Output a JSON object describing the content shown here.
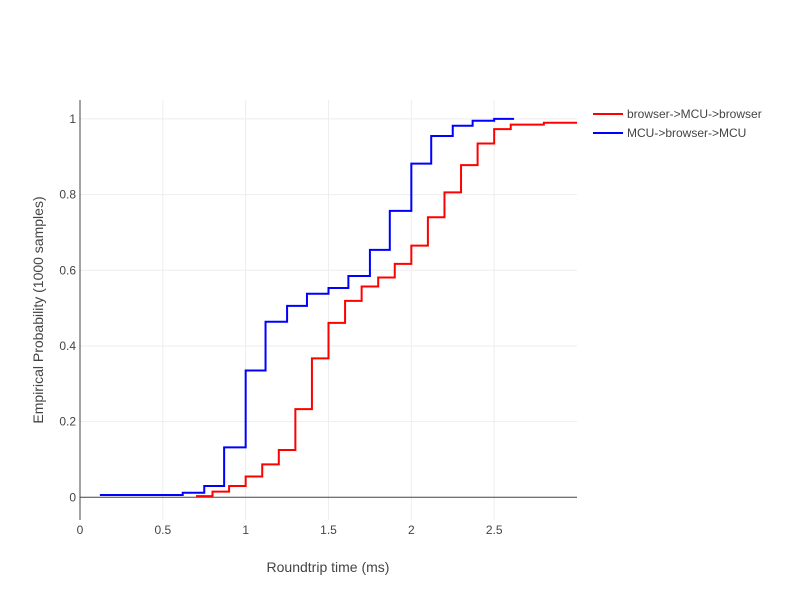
{
  "chart_data": {
    "type": "line",
    "line_shape": "step",
    "xlabel": "Roundtrip time (ms)",
    "ylabel": "Empirical Probability (1000 samples)",
    "xlim": [
      0,
      3.0
    ],
    "ylim": [
      -0.06,
      1.05
    ],
    "x_ticks": [
      0,
      0.5,
      1,
      1.5,
      2,
      2.5
    ],
    "x_tick_labels": [
      "0",
      "0.5",
      "1",
      "1.5",
      "2",
      "2.5"
    ],
    "y_ticks": [
      0,
      0.2,
      0.4,
      0.6,
      0.8,
      1
    ],
    "y_tick_labels": [
      "0",
      "0.2",
      "0.4",
      "0.6",
      "0.8",
      "1"
    ],
    "grid": true,
    "legend_position": "top-right",
    "series": [
      {
        "name": "browser->MCU->browser",
        "color": "#ff0000",
        "x": [
          0.7,
          0.8,
          0.9,
          1.0,
          1.1,
          1.2,
          1.3,
          1.4,
          1.5,
          1.6,
          1.7,
          1.8,
          1.9,
          2.0,
          2.1,
          2.2,
          2.3,
          2.4,
          2.5,
          2.6,
          2.8,
          3.0
        ],
        "y": [
          0.003,
          0.015,
          0.03,
          0.055,
          0.087,
          0.125,
          0.233,
          0.367,
          0.461,
          0.519,
          0.557,
          0.581,
          0.617,
          0.665,
          0.74,
          0.806,
          0.878,
          0.935,
          0.973,
          0.985,
          0.99,
          0.99
        ]
      },
      {
        "name": "MCU->browser->MCU",
        "color": "#0000ff",
        "x": [
          0.12,
          0.62,
          0.75,
          0.87,
          1.0,
          1.12,
          1.25,
          1.37,
          1.5,
          1.62,
          1.75,
          1.87,
          2.0,
          2.12,
          2.25,
          2.37,
          2.5,
          2.62
        ],
        "y": [
          0.006,
          0.012,
          0.03,
          0.132,
          0.335,
          0.464,
          0.506,
          0.538,
          0.553,
          0.585,
          0.654,
          0.757,
          0.882,
          0.955,
          0.982,
          0.995,
          1.0,
          1.0
        ]
      }
    ]
  }
}
